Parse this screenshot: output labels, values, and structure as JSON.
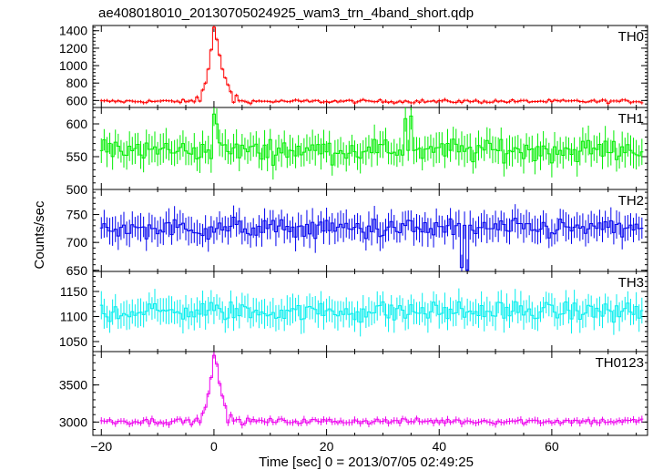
{
  "chart_data": {
    "type": "line",
    "title": "ae408018010_20130705024925_wam3_trn_4band_short.qdp",
    "xlabel": "Time [sec] 0 = 2013/07/05 02:49:25",
    "ylabel": "Counts/sec",
    "xlim": [
      -21.5,
      77
    ],
    "x_ticks": [
      -20,
      0,
      20,
      40,
      60
    ],
    "bin_width": 0.5,
    "x_start": -20,
    "x_end": 76,
    "grid": false,
    "panels": [
      {
        "name": "TH0",
        "color": "#ff0000",
        "ylim": [
          520,
          1460
        ],
        "y_ticks": [
          600,
          800,
          1000,
          1200,
          1400
        ],
        "baseline": 590,
        "noise": 22,
        "error": 18,
        "peak": 1440,
        "features": [
          {
            "x": -3,
            "y": 640
          },
          {
            "x": -2,
            "y": 720
          },
          {
            "x": -1.5,
            "y": 800
          },
          {
            "x": -1,
            "y": 960
          },
          {
            "x": -0.5,
            "y": 1180
          },
          {
            "x": 0,
            "y": 1440
          },
          {
            "x": 0.5,
            "y": 1300
          },
          {
            "x": 1,
            "y": 1120
          },
          {
            "x": 1.5,
            "y": 960
          },
          {
            "x": 2,
            "y": 860
          },
          {
            "x": 2.5,
            "y": 780
          },
          {
            "x": 3,
            "y": 700
          },
          {
            "x": 4,
            "y": 660
          }
        ]
      },
      {
        "name": "TH1",
        "color": "#00ee00",
        "ylim": [
          500,
          625
        ],
        "y_ticks": [
          500,
          550,
          600
        ],
        "baseline": 560,
        "noise": 18,
        "error": 20,
        "features": [
          {
            "x": 0,
            "y": 615
          },
          {
            "x": 0.5,
            "y": 600
          },
          {
            "x": 34,
            "y": 608
          },
          {
            "x": 35,
            "y": 612
          }
        ]
      },
      {
        "name": "TH2",
        "color": "#0000ee",
        "ylim": [
          648,
          795
        ],
        "y_ticks": [
          650,
          700,
          750
        ],
        "baseline": 725,
        "noise": 20,
        "error": 22,
        "features": [
          {
            "x": 44,
            "y": 655
          },
          {
            "x": 45,
            "y": 650
          }
        ]
      },
      {
        "name": "TH3",
        "color": "#00eeee",
        "ylim": [
          1030,
          1190
        ],
        "y_ticks": [
          1050,
          1100,
          1150
        ],
        "baseline": 1110,
        "noise": 22,
        "error": 25,
        "features": []
      },
      {
        "name": "TH0123",
        "color": "#ee00ee",
        "ylim": [
          2820,
          3950
        ],
        "y_ticks": [
          3000,
          3500
        ],
        "baseline": 3010,
        "noise": 45,
        "error": 40,
        "peak": 3900,
        "features": [
          {
            "x": -2,
            "y": 3120
          },
          {
            "x": -1.5,
            "y": 3200
          },
          {
            "x": -1,
            "y": 3380
          },
          {
            "x": -0.5,
            "y": 3600
          },
          {
            "x": 0,
            "y": 3900
          },
          {
            "x": 0.5,
            "y": 3780
          },
          {
            "x": 1,
            "y": 3520
          },
          {
            "x": 1.5,
            "y": 3350
          },
          {
            "x": 2,
            "y": 3220
          },
          {
            "x": 3,
            "y": 3100
          }
        ]
      }
    ]
  }
}
